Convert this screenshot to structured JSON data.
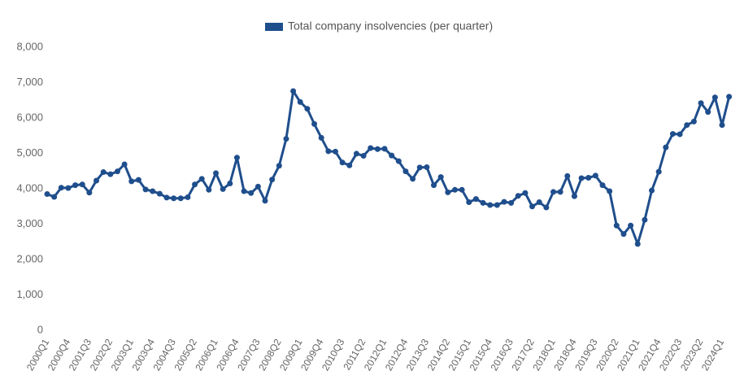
{
  "chart_data": {
    "type": "line",
    "categories": [
      "2000Q1",
      null,
      null,
      "2000Q4",
      null,
      null,
      "2001Q3",
      null,
      null,
      "2002Q2",
      null,
      null,
      "2003Q1",
      null,
      null,
      "2003Q4",
      null,
      null,
      "2004Q3",
      null,
      null,
      "2005Q2",
      null,
      null,
      "2006Q1",
      null,
      null,
      "2006Q4",
      null,
      null,
      "2007Q3",
      null,
      null,
      "2008Q2",
      null,
      null,
      "2009Q1",
      null,
      null,
      "2009Q4",
      null,
      null,
      "2010Q3",
      null,
      null,
      "2011Q2",
      null,
      null,
      "2012Q1",
      null,
      null,
      "2012Q4",
      null,
      null,
      "2013Q3",
      null,
      null,
      "2014Q2",
      null,
      null,
      "2015Q1",
      null,
      null,
      "2015Q4",
      null,
      null,
      "2016Q3",
      null,
      null,
      "2017Q2",
      null,
      null,
      "2018Q1",
      null,
      null,
      "2018Q4",
      null,
      null,
      "2019Q3",
      null,
      null,
      "2020Q2",
      null,
      null,
      "2021Q1",
      null,
      null,
      "2021Q4",
      null,
      null,
      "2022Q3",
      null,
      null,
      "2023Q2",
      null,
      null,
      "2024Q1",
      null
    ],
    "series": [
      {
        "name": "Total company insolvencies (per quarter)",
        "color": "#1f4e8c",
        "values": [
          3850,
          3770,
          4030,
          4020,
          4100,
          4120,
          3890,
          4230,
          4470,
          4410,
          4490,
          4690,
          4210,
          4250,
          3980,
          3930,
          3860,
          3750,
          3730,
          3730,
          3760,
          4120,
          4280,
          3970,
          4440,
          3990,
          4150,
          4880,
          3930,
          3880,
          4060,
          3660,
          4260,
          4650,
          5410,
          6760,
          6450,
          6260,
          5830,
          5440,
          5060,
          5050,
          4740,
          4660,
          4990,
          4930,
          5150,
          5120,
          5130,
          4940,
          4780,
          4490,
          4280,
          4600,
          4610,
          4100,
          4330,
          3900,
          3970,
          3970,
          3620,
          3710,
          3600,
          3540,
          3540,
          3630,
          3600,
          3800,
          3880,
          3500,
          3620,
          3470,
          3910,
          3910,
          4360,
          3790,
          4300,
          4310,
          4370,
          4100,
          3930,
          2960,
          2720,
          2960,
          2440,
          3120,
          3950,
          4480,
          5170,
          5550,
          5540,
          5800,
          5900,
          6420,
          6170,
          6580,
          5800,
          6600
        ]
      }
    ],
    "ylim": [
      0,
      8000
    ],
    "yticks": [
      0,
      {
        "value": 1000,
        "label": "1,000"
      },
      {
        "value": 2000,
        "label": "2,000"
      },
      {
        "value": 3000,
        "label": "3,000"
      },
      {
        "value": 4000,
        "label": "4,000"
      },
      {
        "value": 5000,
        "label": "5,000"
      },
      {
        "value": 6000,
        "label": "6,000"
      },
      {
        "value": 7000,
        "label": "7,000"
      },
      {
        "value": 8000,
        "label": "8,000"
      }
    ],
    "grid": false,
    "legend": "top"
  }
}
